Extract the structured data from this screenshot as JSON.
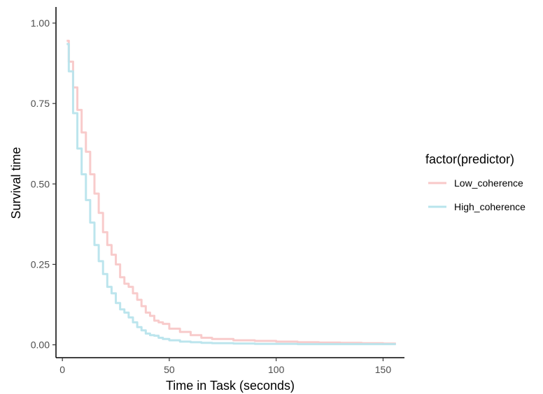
{
  "chart_data": {
    "type": "line",
    "xlabel": "Time in Task (seconds)",
    "ylabel": "Survival time",
    "xlim": [
      -3,
      160
    ],
    "ylim": [
      -0.04,
      1.05
    ],
    "x_ticks": [
      0,
      50,
      100,
      150
    ],
    "x_tick_labels": [
      "0",
      "50",
      "100",
      "150"
    ],
    "y_ticks": [
      0,
      0.25,
      0.5,
      0.75,
      1.0
    ],
    "y_tick_labels": [
      "0.00",
      "0.25",
      "0.50",
      "0.75",
      "1.00"
    ],
    "grid": false,
    "legend": {
      "title": "factor(predictor)",
      "position": "right"
    },
    "series": [
      {
        "name": "Low_coherence",
        "color": "#f8c8c8",
        "x": [
          2,
          3,
          5,
          7,
          9,
          11,
          13,
          15,
          17,
          19,
          21,
          23,
          25,
          27,
          29,
          31,
          33,
          35,
          37,
          39,
          41,
          43,
          45,
          47,
          50,
          55,
          60,
          65,
          70,
          80,
          90,
          100,
          110,
          120,
          130,
          140,
          150,
          156
        ],
        "y": [
          0.945,
          0.88,
          0.8,
          0.73,
          0.66,
          0.6,
          0.53,
          0.47,
          0.41,
          0.35,
          0.31,
          0.28,
          0.25,
          0.21,
          0.19,
          0.18,
          0.16,
          0.14,
          0.12,
          0.1,
          0.09,
          0.075,
          0.07,
          0.065,
          0.05,
          0.04,
          0.03,
          0.022,
          0.018,
          0.014,
          0.012,
          0.01,
          0.008,
          0.007,
          0.006,
          0.005,
          0.004,
          0.004
        ]
      },
      {
        "name": "High_coherence",
        "color": "#b8e4ec",
        "x": [
          2,
          3,
          5,
          7,
          9,
          11,
          13,
          15,
          17,
          19,
          21,
          23,
          25,
          27,
          29,
          31,
          33,
          35,
          37,
          39,
          41,
          43,
          45,
          47,
          50,
          55,
          60,
          65,
          70,
          80,
          90,
          100,
          110,
          120,
          130,
          140,
          150,
          156
        ],
        "y": [
          0.935,
          0.85,
          0.72,
          0.61,
          0.53,
          0.45,
          0.38,
          0.31,
          0.26,
          0.22,
          0.18,
          0.16,
          0.13,
          0.11,
          0.1,
          0.085,
          0.07,
          0.055,
          0.045,
          0.035,
          0.03,
          0.028,
          0.022,
          0.018,
          0.014,
          0.01,
          0.008,
          0.006,
          0.005,
          0.004,
          0.003,
          0.003,
          0.002,
          0.002,
          0.002,
          0.002,
          0.002,
          0.002
        ]
      }
    ]
  }
}
